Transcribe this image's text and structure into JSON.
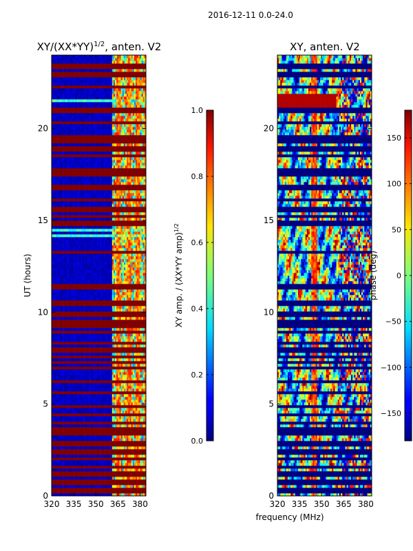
{
  "figure_title": "2016-12-11 0.0-24.0",
  "chart_data": [
    {
      "type": "heatmap",
      "title_main": "XY/(XX*YY)",
      "title_sup": "1/2",
      "title_tail": ", anten. V2",
      "xlabel": "",
      "ylabel": "UT (hours)",
      "xlim": [
        320,
        384
      ],
      "ylim": [
        0,
        24
      ],
      "xticks": [
        320,
        335,
        350,
        365,
        380
      ],
      "yticks": [
        0,
        5,
        10,
        15,
        20
      ],
      "colormap": "jet",
      "clim": [
        0.0,
        1.0
      ],
      "colorbar": {
        "ticks": [
          "0.0",
          "0.2",
          "0.4",
          "0.6",
          "0.8",
          "1.0"
        ],
        "tick_values": [
          0.0,
          0.2,
          0.4,
          0.6,
          0.8,
          1.0
        ],
        "label_main": "XY amp. / (XX*YY amp)",
        "label_sup": "1/2"
      },
      "flagged_hours": [
        0.3,
        0.75,
        1.2,
        1.55,
        2.0,
        2.4,
        2.85,
        3.45,
        3.6,
        3.95,
        4.4,
        4.9,
        5.6,
        6.2,
        6.95,
        7.25,
        7.6,
        7.95,
        8.35,
        8.9,
        9.3,
        9.55,
        9.9,
        10.45,
        10.55,
        11.4,
        13.3,
        14.85,
        15.2,
        15.6,
        16.1,
        16.8,
        17.55,
        17.7,
        18.55,
        18.9,
        19.35,
        19.55,
        20.35,
        20.9,
        21.05,
        22.3,
        22.95,
        23.4
      ],
      "bright_band_hours": [
        14.1,
        14.5,
        21.5
      ]
    },
    {
      "type": "heatmap",
      "title": "XY, anten. V2",
      "xlabel": "frequency (MHz)",
      "ylabel": "",
      "xlim": [
        320,
        384
      ],
      "ylim": [
        0,
        24
      ],
      "xticks": [
        320,
        335,
        350,
        365,
        380
      ],
      "yticks": [
        0,
        5,
        10,
        15,
        20
      ],
      "colormap": "jet",
      "clim": [
        -180,
        180
      ],
      "colorbar": {
        "ticks": [
          "−150",
          "−100",
          "−50",
          "0",
          "50",
          "100",
          "150"
        ],
        "tick_values": [
          -150,
          -100,
          -50,
          0,
          50,
          100,
          150
        ],
        "label": "phase (deg)"
      }
    }
  ]
}
